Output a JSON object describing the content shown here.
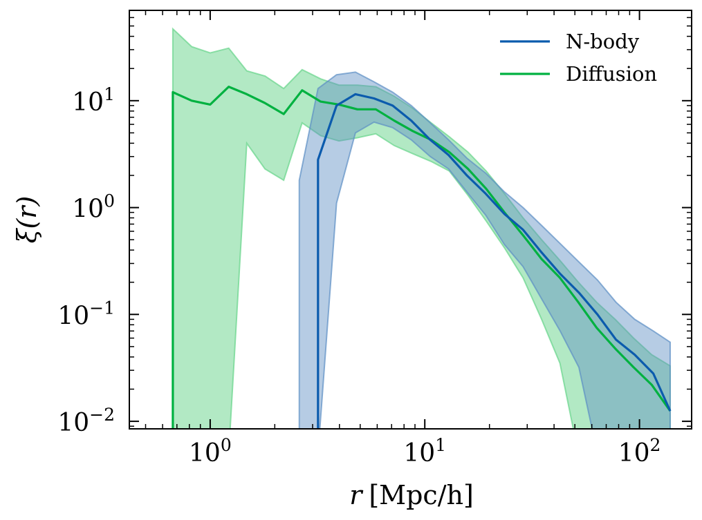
{
  "chart_data": {
    "type": "line",
    "xlabel_var": "r",
    "xlabel_unit": "[Mpc/h]",
    "ylabel": "ξ(r)",
    "xscale": "log",
    "yscale": "log",
    "xlim": [
      0.42,
      175
    ],
    "ylim": [
      0.0085,
      70
    ],
    "xticks": [
      {
        "value": 1,
        "base": "10",
        "exp": "0"
      },
      {
        "value": 10,
        "base": "10",
        "exp": "1"
      },
      {
        "value": 100,
        "base": "10",
        "exp": "2"
      }
    ],
    "yticks": [
      {
        "value": 10,
        "base": "10",
        "exp": "1"
      },
      {
        "value": 1,
        "base": "10",
        "exp": "0"
      },
      {
        "value": 0.1,
        "base": "10",
        "exp": "−1"
      },
      {
        "value": 0.01,
        "base": "10",
        "exp": "−2"
      }
    ],
    "legend_position": "top-right",
    "series": [
      {
        "name": "Diffusion",
        "color": "#00b140",
        "fill_color": "#66d48a",
        "band_fill_opacity": 0.5,
        "r": [
          0.67,
          0.82,
          1.0,
          1.22,
          1.48,
          1.8,
          2.2,
          2.68,
          3.27,
          3.98,
          4.85,
          5.91,
          7.2,
          8.77,
          10.7,
          13.0,
          15.9,
          19.3,
          23.5,
          28.7,
          35.0,
          42.6,
          51.9,
          63.2,
          77.0,
          93.9,
          114,
          139
        ],
        "xi": [
          12,
          10,
          9.2,
          13.5,
          11.5,
          9.5,
          7.5,
          12.5,
          9.8,
          9.2,
          8.3,
          8.3,
          6.5,
          5.2,
          4.3,
          3.3,
          2.3,
          1.5,
          0.9,
          0.55,
          0.33,
          0.22,
          0.13,
          0.075,
          0.048,
          0.032,
          0.022,
          0.0125
        ],
        "upper": [
          47,
          32,
          28,
          31,
          19,
          17,
          13,
          19.5,
          16,
          14,
          14,
          13.5,
          11,
          8.5,
          6.2,
          4.6,
          3.3,
          2.2,
          1.35,
          0.8,
          0.5,
          0.32,
          0.2,
          0.13,
          0.09,
          0.06,
          0.042,
          0.033
        ],
        "lower": [
          0.005,
          0.005,
          0.005,
          0.005,
          4.0,
          2.3,
          1.8,
          6.2,
          4.7,
          4.2,
          4.5,
          4.9,
          3.8,
          3.2,
          2.7,
          2.2,
          1.3,
          0.75,
          0.42,
          0.22,
          0.09,
          0.035,
          0.005,
          0.005,
          0.005,
          0.005,
          0.005,
          0.005
        ]
      },
      {
        "name": "N-body",
        "color": "#0b5bad",
        "fill_color": "#5d8fc4",
        "band_fill_opacity": 0.45,
        "r": [
          3.18,
          3.88,
          4.75,
          5.8,
          7.08,
          8.65,
          10.6,
          12.9,
          15.7,
          19.2,
          23.5,
          28.7,
          35.0,
          42.7,
          52.2,
          63.7,
          77.8,
          95.0,
          116,
          139
        ],
        "xi": [
          2.8,
          9.0,
          11.5,
          10.5,
          9.0,
          6.5,
          4.3,
          3.1,
          2.0,
          1.35,
          0.87,
          0.62,
          0.38,
          0.24,
          0.16,
          0.1,
          0.058,
          0.042,
          0.028,
          0.0125
        ],
        "upper": [
          13,
          17.5,
          18.5,
          15,
          12,
          9,
          6.2,
          4.3,
          2.9,
          2.1,
          1.4,
          1.0,
          0.68,
          0.46,
          0.31,
          0.21,
          0.13,
          0.09,
          0.07,
          0.055
        ],
        "lower": [
          0.005,
          1.1,
          5.0,
          6.3,
          5.6,
          4.3,
          3.0,
          2.3,
          1.4,
          0.85,
          0.45,
          0.28,
          0.14,
          0.07,
          0.032,
          0.005,
          0.005,
          0.005,
          0.005,
          0.005
        ],
        "band_r_start": 2.6,
        "band_upper_start": 1.8
      }
    ]
  }
}
